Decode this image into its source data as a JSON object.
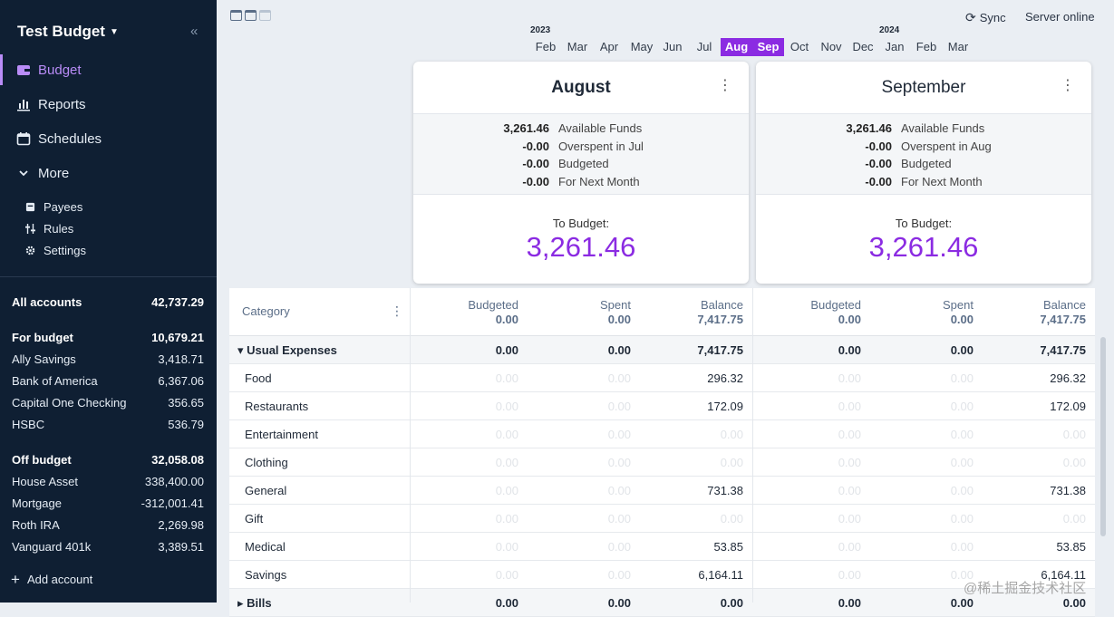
{
  "sidebar": {
    "budget_name": "Test Budget",
    "nav": [
      {
        "label": "Budget",
        "icon": "wallet-icon"
      },
      {
        "label": "Reports",
        "icon": "chart-icon"
      },
      {
        "label": "Schedules",
        "icon": "calendar-icon"
      },
      {
        "label": "More",
        "icon": "chevron-down-icon"
      }
    ],
    "sub": [
      {
        "label": "Payees",
        "icon": "payees-icon"
      },
      {
        "label": "Rules",
        "icon": "rules-icon"
      },
      {
        "label": "Settings",
        "icon": "gear-icon"
      }
    ],
    "all_accounts": {
      "label": "All accounts",
      "amount": "42,737.29"
    },
    "for_budget": {
      "label": "For budget",
      "amount": "10,679.21"
    },
    "budget_accounts": [
      {
        "name": "Ally Savings",
        "amount": "3,418.71"
      },
      {
        "name": "Bank of America",
        "amount": "6,367.06"
      },
      {
        "name": "Capital One Checking",
        "amount": "356.65"
      },
      {
        "name": "HSBC",
        "amount": "536.79"
      }
    ],
    "off_budget": {
      "label": "Off budget",
      "amount": "32,058.08"
    },
    "off_accounts": [
      {
        "name": "House Asset",
        "amount": "338,400.00"
      },
      {
        "name": "Mortgage",
        "amount": "-312,001.41"
      },
      {
        "name": "Roth IRA",
        "amount": "2,269.98"
      },
      {
        "name": "Vanguard 401k",
        "amount": "3,389.51"
      }
    ],
    "add_account": "Add account"
  },
  "topbar": {
    "sync": "Sync",
    "server_status": "Server online",
    "year_left": "2023",
    "year_right": "2024",
    "months": [
      "Feb",
      "Mar",
      "Apr",
      "May",
      "Jun",
      "Jul",
      "Aug",
      "Sep",
      "Oct",
      "Nov",
      "Dec",
      "Jan",
      "Feb",
      "Mar"
    ],
    "selected_months": [
      "Aug",
      "Sep"
    ]
  },
  "cards": [
    {
      "month": "August",
      "rows": [
        {
          "value": "3,261.46",
          "label": "Available Funds"
        },
        {
          "value": "-0.00",
          "label": "Overspent in Jul"
        },
        {
          "value": "-0.00",
          "label": "Budgeted"
        },
        {
          "value": "-0.00",
          "label": "For Next Month"
        }
      ],
      "to_budget_label": "To Budget:",
      "to_budget": "3,261.46"
    },
    {
      "month": "September",
      "rows": [
        {
          "value": "3,261.46",
          "label": "Available Funds"
        },
        {
          "value": "-0.00",
          "label": "Overspent in Aug"
        },
        {
          "value": "-0.00",
          "label": "Budgeted"
        },
        {
          "value": "-0.00",
          "label": "For Next Month"
        }
      ],
      "to_budget_label": "To Budget:",
      "to_budget": "3,261.46"
    }
  ],
  "table": {
    "category_header": "Category",
    "months": [
      {
        "budgeted_label": "Budgeted",
        "budgeted": "0.00",
        "spent_label": "Spent",
        "spent": "0.00",
        "balance_label": "Balance",
        "balance": "7,417.75"
      },
      {
        "budgeted_label": "Budgeted",
        "budgeted": "0.00",
        "spent_label": "Spent",
        "spent": "0.00",
        "balance_label": "Balance",
        "balance": "7,417.75"
      }
    ],
    "rows": [
      {
        "name": "Usual Expenses",
        "group": true,
        "cells": [
          "0.00",
          "0.00",
          "7,417.75",
          "0.00",
          "0.00",
          "7,417.75"
        ]
      },
      {
        "name": "Food",
        "group": false,
        "cells": [
          "0.00",
          "0.00",
          "296.32",
          "0.00",
          "0.00",
          "296.32"
        ]
      },
      {
        "name": "Restaurants",
        "group": false,
        "cells": [
          "0.00",
          "0.00",
          "172.09",
          "0.00",
          "0.00",
          "172.09"
        ]
      },
      {
        "name": "Entertainment",
        "group": false,
        "cells": [
          "0.00",
          "0.00",
          "0.00",
          "0.00",
          "0.00",
          "0.00"
        ]
      },
      {
        "name": "Clothing",
        "group": false,
        "cells": [
          "0.00",
          "0.00",
          "0.00",
          "0.00",
          "0.00",
          "0.00"
        ]
      },
      {
        "name": "General",
        "group": false,
        "cells": [
          "0.00",
          "0.00",
          "731.38",
          "0.00",
          "0.00",
          "731.38"
        ]
      },
      {
        "name": "Gift",
        "group": false,
        "cells": [
          "0.00",
          "0.00",
          "0.00",
          "0.00",
          "0.00",
          "0.00"
        ]
      },
      {
        "name": "Medical",
        "group": false,
        "cells": [
          "0.00",
          "0.00",
          "53.85",
          "0.00",
          "0.00",
          "53.85"
        ]
      },
      {
        "name": "Savings",
        "group": false,
        "cells": [
          "0.00",
          "0.00",
          "6,164.11",
          "0.00",
          "0.00",
          "6,164.11"
        ]
      },
      {
        "name": "Bills",
        "group": true,
        "cells": [
          "0.00",
          "0.00",
          "0.00",
          "0.00",
          "0.00",
          "0.00"
        ]
      }
    ]
  },
  "watermark": "@稀土掘金技术社区",
  "colors": {
    "accent": "#8b2be2",
    "sidebar_bg": "#0f1f33",
    "active_nav": "#b98cf7"
  }
}
